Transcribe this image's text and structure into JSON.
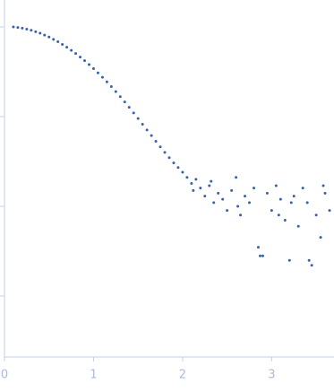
{
  "chart_data": {
    "type": "scatter",
    "x": [
      0.1,
      0.15,
      0.2,
      0.25,
      0.3,
      0.35,
      0.4,
      0.45,
      0.5,
      0.55,
      0.6,
      0.65,
      0.7,
      0.75,
      0.8,
      0.85,
      0.9,
      0.95,
      1.0,
      1.05,
      1.1,
      1.15,
      1.2,
      1.25,
      1.3,
      1.35,
      1.4,
      1.45,
      1.5,
      1.55,
      1.6,
      1.65,
      1.7,
      1.75,
      1.8,
      1.85,
      1.9,
      1.95,
      2.0,
      2.05,
      2.1,
      2.15,
      2.2,
      2.25,
      2.3,
      2.35,
      2.4,
      2.45,
      2.5,
      2.55,
      2.6,
      2.65,
      2.7,
      2.75,
      2.8,
      2.85,
      2.9,
      2.95,
      3.0,
      3.05,
      3.1,
      3.15,
      3.2,
      3.25,
      3.3,
      3.35,
      3.4,
      3.45,
      3.5,
      3.55,
      3.6,
      3.65,
      2.12,
      2.32,
      2.62,
      2.87,
      3.08,
      3.22,
      3.42,
      3.58
    ],
    "values": [
      1.0,
      0.985,
      0.969,
      0.944,
      0.917,
      0.884,
      0.85,
      0.81,
      0.771,
      0.726,
      0.684,
      0.638,
      0.594,
      0.548,
      0.505,
      0.461,
      0.421,
      0.38,
      0.343,
      0.307,
      0.275,
      0.244,
      0.216,
      0.19,
      0.167,
      0.146,
      0.127,
      0.11,
      0.0952,
      0.0823,
      0.0711,
      0.0614,
      0.0531,
      0.046,
      0.0399,
      0.0349,
      0.0305,
      0.0271,
      0.024,
      0.021,
      0.018,
      0.02,
      0.016,
      0.013,
      0.017,
      0.011,
      0.014,
      0.012,
      0.009,
      0.015,
      0.021,
      0.008,
      0.013,
      0.011,
      0.016,
      0.0035,
      0.0028,
      0.014,
      0.009,
      0.017,
      0.012,
      0.007,
      0.0025,
      0.013,
      0.006,
      0.016,
      0.011,
      0.0022,
      0.008,
      0.0045,
      0.014,
      0.009,
      0.015,
      0.019,
      0.01,
      0.0028,
      0.008,
      0.011,
      0.0025,
      0.017
    ],
    "color": "#3a62a8",
    "xlim": [
      0,
      3.7
    ],
    "xticks": [
      0,
      1,
      2,
      3
    ],
    "ylim": [
      0.000209,
      1.995
    ],
    "yticks": [
      1,
      0.1,
      0.01,
      0.001
    ],
    "log_y": true,
    "y_tick_labels": false,
    "grid": false
  }
}
